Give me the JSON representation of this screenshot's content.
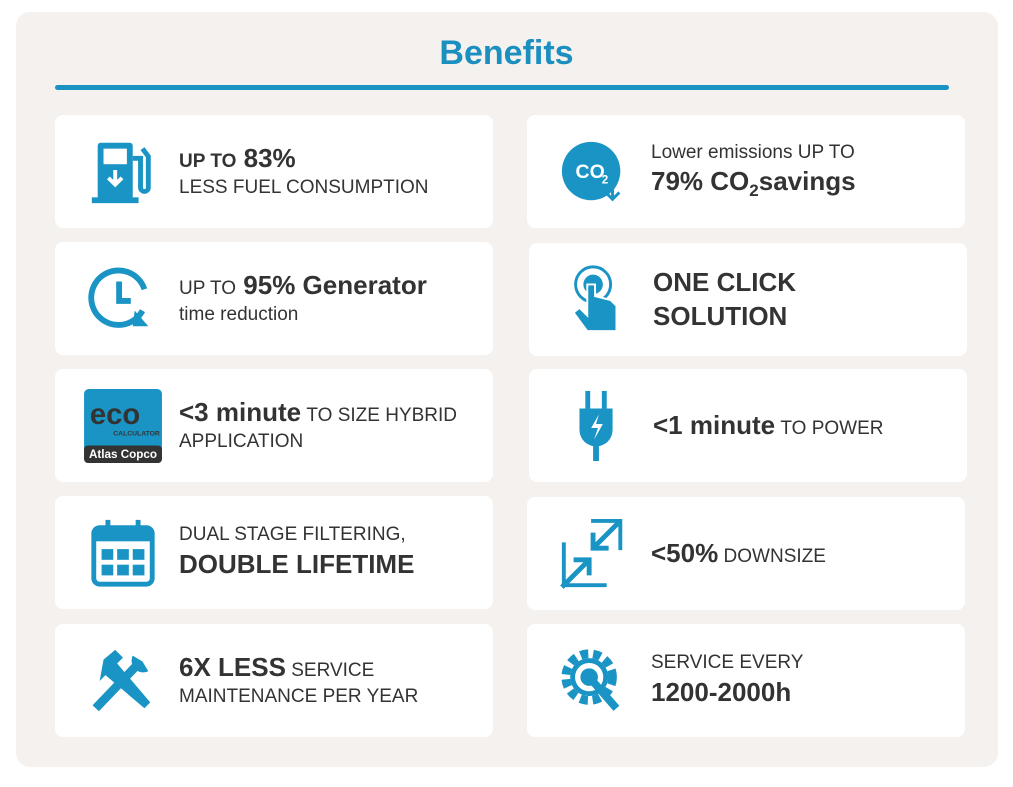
{
  "title": "Benefits",
  "cards": [
    {
      "lines": [
        [
          "UP TO",
          "83%"
        ],
        [
          "LESS FUEL CONSUMPTION"
        ]
      ]
    },
    {
      "lines": [
        [
          "Lower emissions UP TO"
        ],
        [
          "79% CO",
          "2",
          "savings"
        ]
      ],
      "icon_text": [
        "CO",
        "2"
      ]
    },
    {
      "lines": [
        [
          "UP TO",
          "95% Generator"
        ],
        [
          "time reduction"
        ]
      ]
    },
    {
      "lines": [
        [
          "ONE CLICK"
        ],
        [
          "SOLUTION"
        ]
      ]
    },
    {
      "lines": [
        [
          "<3 minute",
          "TO SIZE HYBRID"
        ],
        [
          "APPLICATION"
        ]
      ],
      "icon_text": [
        "eco",
        "CALCULATOR",
        "Atlas Copco"
      ]
    },
    {
      "lines": [
        [
          "<1 minute",
          "TO POWER"
        ]
      ]
    },
    {
      "lines": [
        [
          "DUAL STAGE FILTERING,"
        ],
        [
          "DOUBLE LIFETIME"
        ]
      ]
    },
    {
      "lines": [
        [
          "<50%",
          "DOWNSIZE"
        ]
      ]
    },
    {
      "lines": [
        [
          "6X LESS",
          "SERVICE"
        ],
        [
          "MAINTENANCE PER YEAR"
        ]
      ]
    },
    {
      "lines": [
        [
          "SERVICE EVERY"
        ],
        [
          "1200-2000h"
        ]
      ]
    }
  ]
}
